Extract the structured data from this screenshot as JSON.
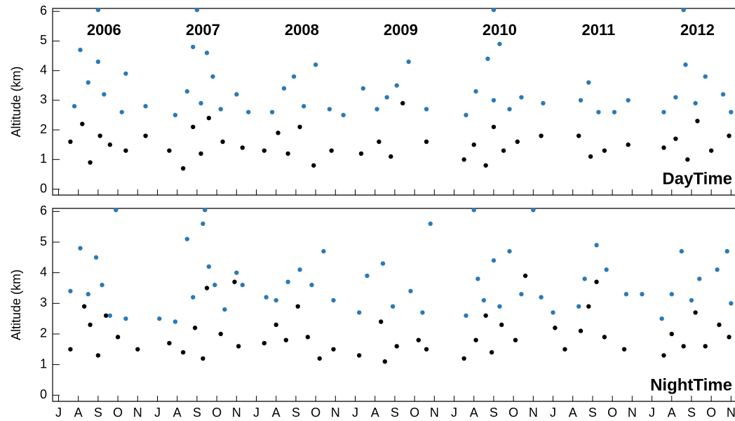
{
  "chart_data": [
    {
      "type": "scatter",
      "y_label": "Altitude (km)",
      "label": "DayTime",
      "annotations": [
        "2006",
        "2007",
        "2008",
        "2009",
        "2010",
        "2011",
        "2012"
      ],
      "xlim": [
        -0.3,
        34.2
      ],
      "ylim": [
        -0.2,
        6.1
      ],
      "yticks": [
        0,
        1,
        2,
        3,
        4,
        5,
        6
      ],
      "series": [
        {
          "color": "#000000",
          "x": [
            0.6,
            1.2,
            1.6,
            2.1,
            2.6,
            3.4,
            4.4,
            5.6,
            6.3,
            6.8,
            7.2,
            7.6,
            8.3,
            9.3,
            10.4,
            11.1,
            11.6,
            12.2,
            12.9,
            13.8,
            15.3,
            16.2,
            16.8,
            17.4,
            18.6,
            20.5,
            21.0,
            21.6,
            22.0,
            22.5,
            23.2,
            24.4,
            26.3,
            26.9,
            27.6,
            28.8,
            30.6,
            31.2,
            31.8,
            32.3,
            33.0,
            33.9
          ],
          "values": [
            1.6,
            2.2,
            0.9,
            1.8,
            1.5,
            1.3,
            1.8,
            1.3,
            0.7,
            2.1,
            1.2,
            2.4,
            1.6,
            1.4,
            1.3,
            1.9,
            1.2,
            2.1,
            0.8,
            1.3,
            1.2,
            1.6,
            1.1,
            2.9,
            1.6,
            1.0,
            1.5,
            0.8,
            2.1,
            1.3,
            1.6,
            1.8,
            1.8,
            1.1,
            1.3,
            1.5,
            1.4,
            1.7,
            1.0,
            2.3,
            1.3,
            1.8
          ]
        },
        {
          "color": "#2a7ab8",
          "x": [
            0.8,
            1.1,
            1.5,
            2.0,
            2.3,
            3.2,
            3.4,
            4.4,
            5.9,
            6.5,
            6.8,
            7.2,
            7.5,
            7.8,
            8.2,
            9.0,
            9.6,
            10.8,
            11.4,
            11.9,
            12.4,
            13.0,
            13.7,
            14.4,
            15.4,
            16.1,
            16.6,
            17.1,
            17.7,
            18.6,
            20.6,
            21.1,
            21.7,
            22.0,
            22.3,
            22.8,
            23.4,
            24.5,
            26.4,
            26.8,
            27.3,
            28.1,
            28.8,
            30.6,
            31.2,
            31.7,
            32.2,
            32.7,
            33.6,
            34.0,
            2.0,
            7.0,
            22.0,
            31.6
          ],
          "values": [
            2.8,
            4.7,
            3.6,
            4.3,
            3.2,
            2.6,
            3.9,
            2.8,
            2.5,
            3.3,
            4.8,
            2.9,
            4.6,
            3.8,
            2.7,
            3.2,
            2.6,
            2.6,
            3.4,
            3.8,
            2.8,
            4.2,
            2.7,
            2.5,
            3.4,
            2.7,
            3.1,
            3.5,
            4.3,
            2.7,
            2.5,
            3.3,
            4.4,
            3.0,
            4.9,
            2.7,
            3.1,
            2.9,
            3.0,
            3.6,
            2.6,
            2.6,
            3.0,
            2.6,
            3.1,
            4.2,
            2.9,
            3.8,
            3.2,
            2.6,
            6.05,
            6.05,
            6.05,
            6.05
          ]
        }
      ]
    },
    {
      "type": "scatter",
      "y_label": "Altitude (km)",
      "label": "NightTime",
      "xlim": [
        -0.3,
        34.2
      ],
      "ylim": [
        -0.2,
        6.1
      ],
      "yticks": [
        0,
        1,
        2,
        3,
        4,
        5,
        6
      ],
      "xticks": [
        {
          "value": 0,
          "label": "J"
        },
        {
          "value": 1,
          "label": "A"
        },
        {
          "value": 2,
          "label": "S"
        },
        {
          "value": 3,
          "label": "O"
        },
        {
          "value": 4,
          "label": "N"
        },
        {
          "value": 5,
          "label": "J"
        },
        {
          "value": 6,
          "label": "A"
        },
        {
          "value": 7,
          "label": "S"
        },
        {
          "value": 8,
          "label": "O"
        },
        {
          "value": 9,
          "label": "N"
        },
        {
          "value": 10,
          "label": "J"
        },
        {
          "value": 11,
          "label": "A"
        },
        {
          "value": 12,
          "label": "S"
        },
        {
          "value": 13,
          "label": "O"
        },
        {
          "value": 14,
          "label": "N"
        },
        {
          "value": 15,
          "label": "J"
        },
        {
          "value": 16,
          "label": "A"
        },
        {
          "value": 17,
          "label": "S"
        },
        {
          "value": 18,
          "label": "O"
        },
        {
          "value": 19,
          "label": "N"
        },
        {
          "value": 20,
          "label": "J"
        },
        {
          "value": 21,
          "label": "A"
        },
        {
          "value": 22,
          "label": "S"
        },
        {
          "value": 23,
          "label": "O"
        },
        {
          "value": 24,
          "label": "N"
        },
        {
          "value": 25,
          "label": "J"
        },
        {
          "value": 26,
          "label": "A"
        },
        {
          "value": 27,
          "label": "S"
        },
        {
          "value": 28,
          "label": "O"
        },
        {
          "value": 29,
          "label": "N"
        },
        {
          "value": 30,
          "label": "J"
        },
        {
          "value": 31,
          "label": "A"
        },
        {
          "value": 32,
          "label": "S"
        },
        {
          "value": 33,
          "label": "O"
        },
        {
          "value": 34,
          "label": "N"
        }
      ],
      "series": [
        {
          "color": "#000000",
          "x": [
            0.6,
            1.3,
            1.6,
            2.0,
            2.4,
            3.0,
            4.0,
            5.6,
            6.3,
            6.9,
            7.3,
            7.5,
            8.2,
            9.1,
            8.9,
            10.4,
            11.0,
            11.5,
            12.1,
            12.6,
            13.2,
            13.9,
            15.2,
            16.3,
            16.5,
            17.1,
            18.2,
            18.6,
            20.5,
            21.1,
            21.6,
            21.9,
            22.4,
            23.1,
            23.6,
            25.1,
            25.6,
            26.4,
            26.8,
            27.2,
            27.6,
            28.6,
            30.6,
            31.0,
            31.6,
            32.2,
            32.7,
            33.4,
            33.9
          ],
          "values": [
            1.5,
            2.9,
            2.3,
            1.3,
            2.6,
            1.9,
            1.5,
            1.7,
            1.4,
            2.2,
            1.2,
            3.5,
            2.0,
            1.6,
            3.7,
            1.7,
            2.3,
            1.8,
            2.9,
            1.9,
            1.2,
            1.5,
            1.3,
            2.4,
            1.1,
            1.6,
            1.8,
            1.5,
            1.2,
            1.8,
            2.6,
            1.4,
            2.3,
            1.8,
            3.9,
            2.2,
            1.5,
            2.1,
            2.9,
            3.7,
            1.9,
            1.5,
            1.3,
            2.0,
            1.6,
            2.7,
            1.6,
            2.3,
            1.9
          ]
        },
        {
          "color": "#2a7ab8",
          "x": [
            0.6,
            1.1,
            1.5,
            1.9,
            2.2,
            2.6,
            3.4,
            5.1,
            5.9,
            6.5,
            6.8,
            7.3,
            7.6,
            7.9,
            8.4,
            9.0,
            9.3,
            10.5,
            11.0,
            11.6,
            12.2,
            12.8,
            13.4,
            13.9,
            15.2,
            15.6,
            16.4,
            16.9,
            17.8,
            18.4,
            18.8,
            20.6,
            21.2,
            21.5,
            22.0,
            22.3,
            22.8,
            23.4,
            24.4,
            25.0,
            26.3,
            26.6,
            27.2,
            27.7,
            28.7,
            29.5,
            30.5,
            31.0,
            31.5,
            32.0,
            32.4,
            33.3,
            33.8,
            34.0,
            2.9,
            7.4,
            21.0,
            24.0
          ],
          "values": [
            3.4,
            4.8,
            3.3,
            4.5,
            3.6,
            2.6,
            2.5,
            2.5,
            2.4,
            5.1,
            3.2,
            5.6,
            4.2,
            3.6,
            2.8,
            4.0,
            3.6,
            3.2,
            3.1,
            3.7,
            4.1,
            3.6,
            4.7,
            3.1,
            2.7,
            3.9,
            4.3,
            2.9,
            3.4,
            2.7,
            5.6,
            2.6,
            3.8,
            3.1,
            4.4,
            2.9,
            4.7,
            3.3,
            3.2,
            2.7,
            2.9,
            3.8,
            4.9,
            4.1,
            3.3,
            3.3,
            2.5,
            3.3,
            4.7,
            3.1,
            3.8,
            4.1,
            4.7,
            3.0,
            6.05,
            6.05,
            6.05,
            6.05
          ]
        }
      ]
    }
  ]
}
